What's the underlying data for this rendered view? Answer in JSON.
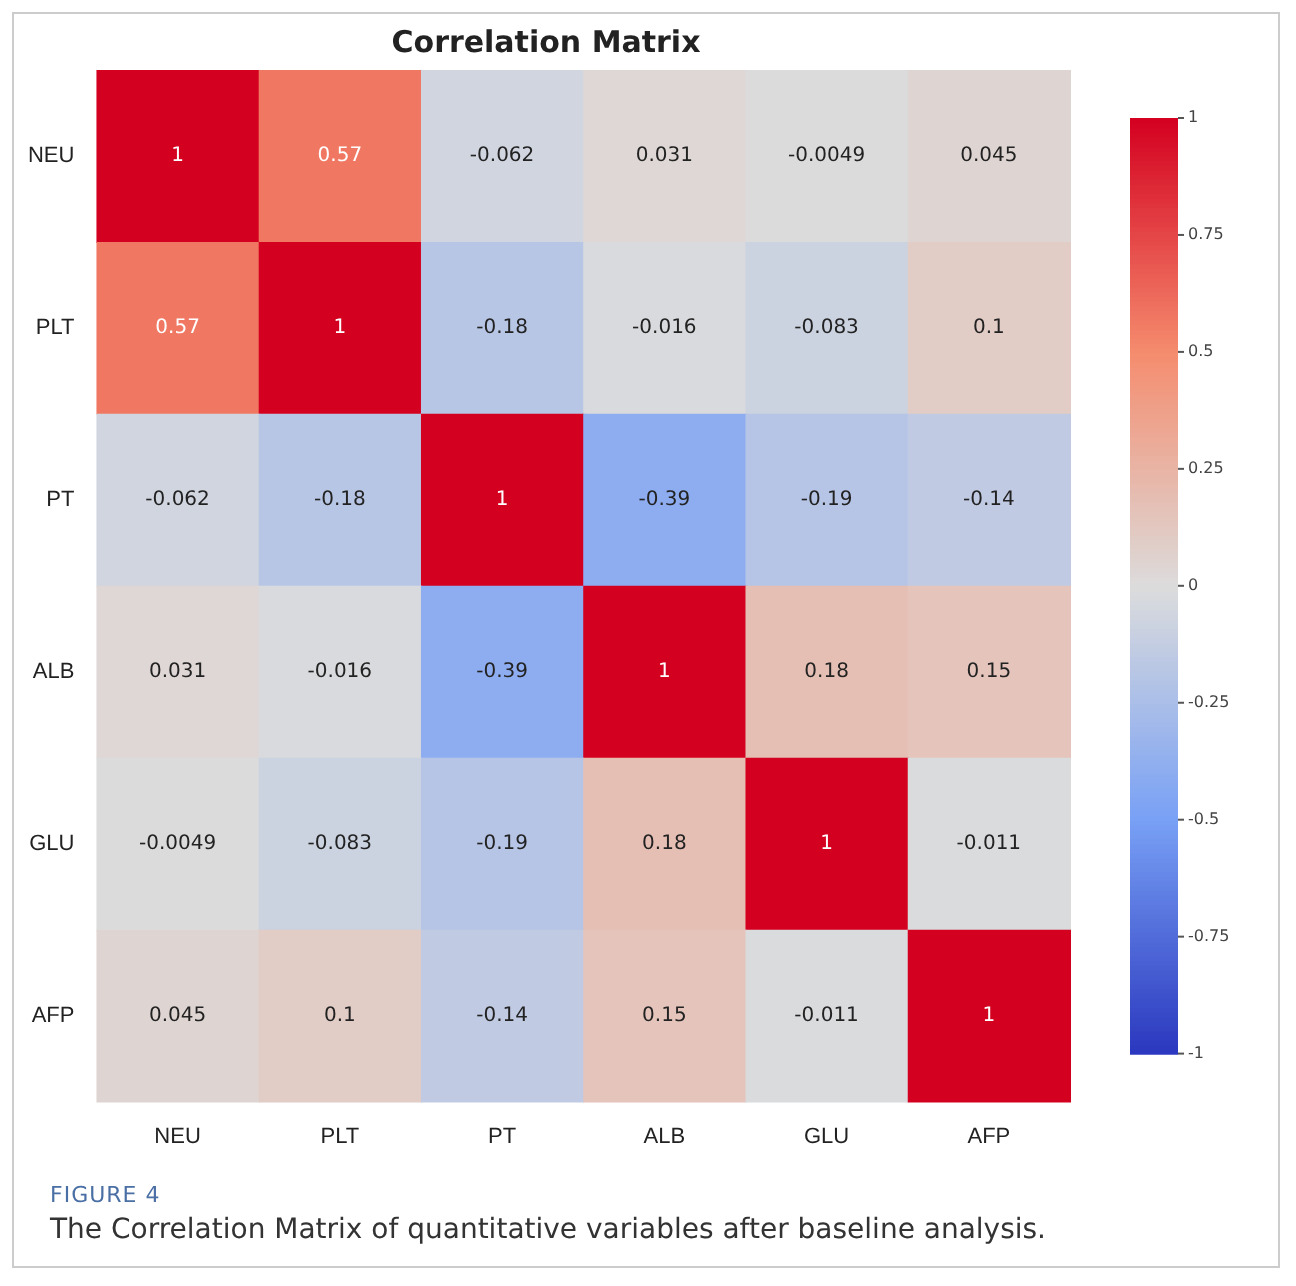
{
  "chart_data": {
    "type": "heatmap",
    "title": "Correlation Matrix",
    "categories": [
      "NEU",
      "PLT",
      "PT",
      "ALB",
      "GLU",
      "AFP"
    ],
    "y_categories": [
      "NEU",
      "PLT",
      "PT",
      "ALB",
      "GLU",
      "AFP"
    ],
    "cells": [
      [
        1,
        0.57,
        -0.062,
        0.031,
        -0.0049,
        0.045
      ],
      [
        0.57,
        1,
        -0.18,
        -0.016,
        -0.083,
        0.1
      ],
      [
        -0.062,
        -0.18,
        1,
        -0.39,
        -0.19,
        -0.14
      ],
      [
        0.031,
        -0.016,
        -0.39,
        1,
        0.18,
        0.15
      ],
      [
        -0.0049,
        -0.083,
        -0.19,
        0.18,
        1,
        -0.011
      ],
      [
        0.045,
        0.1,
        -0.14,
        0.15,
        -0.011,
        1
      ]
    ],
    "clim": [
      -1,
      1
    ],
    "cticks": [
      -1,
      -0.75,
      -0.5,
      -0.25,
      0,
      0.25,
      0.5,
      0.75,
      1
    ],
    "data_labels": true,
    "annotations": [
      "FIGURE 4",
      "The Correlation Matrix of quantitative variables after baseline analysis."
    ]
  }
}
